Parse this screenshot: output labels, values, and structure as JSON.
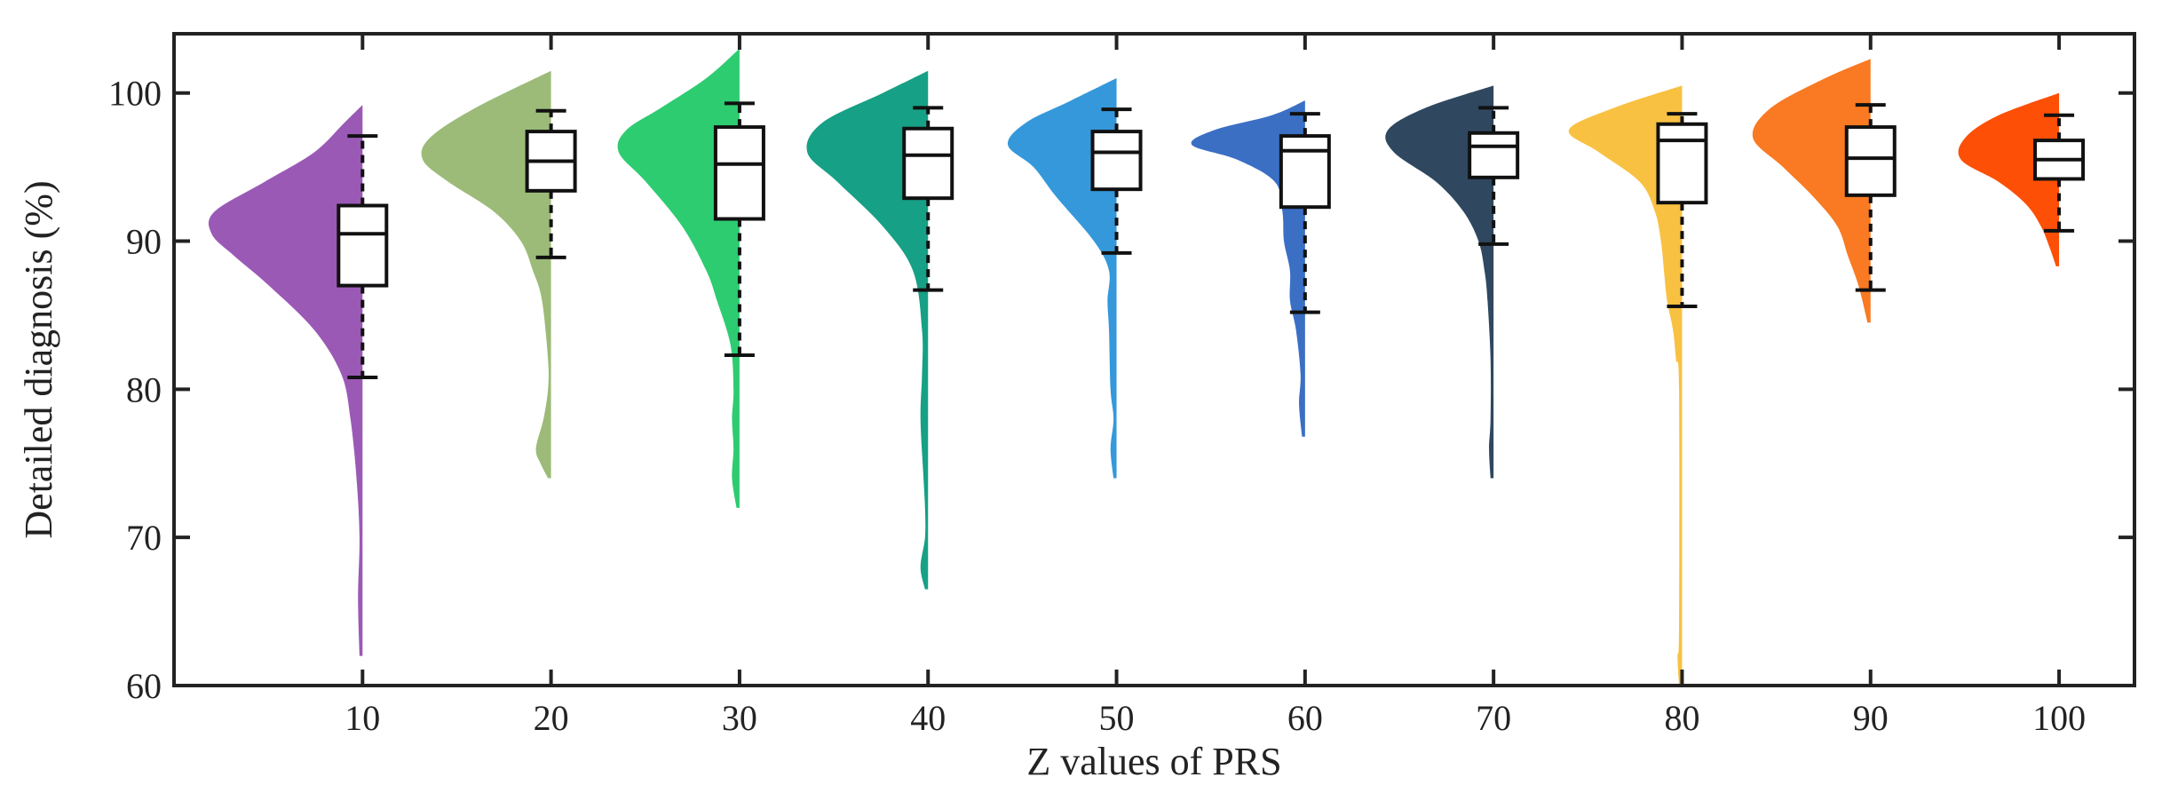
{
  "chart_data": {
    "type": "violin+box (half-violin)",
    "xlabel": "Z values of PRS",
    "ylabel": "Detailed diagnosis (%)",
    "ylim": [
      60,
      104
    ],
    "xlim": [
      0,
      104
    ],
    "yticks": [
      60,
      70,
      80,
      90,
      100
    ],
    "yticklabels": [
      "60",
      "70",
      "80",
      "90",
      "100"
    ],
    "xticks": [
      10,
      20,
      30,
      40,
      50,
      60,
      70,
      80,
      90,
      100
    ],
    "xticklabels": [
      "10",
      "20",
      "30",
      "40",
      "50",
      "60",
      "70",
      "80",
      "90",
      "100"
    ],
    "grid": false,
    "series": [
      {
        "x": 10,
        "color": "#9b59b6",
        "box": {
          "whisker_low": 80.8,
          "q1": 87.0,
          "median": 90.5,
          "q3": 92.4,
          "whisker_high": 97.1
        },
        "violin": [
          [
            62.0,
            0.02
          ],
          [
            66,
            0.03
          ],
          [
            70,
            0.02
          ],
          [
            74,
            0.04
          ],
          [
            78,
            0.08
          ],
          [
            81,
            0.14
          ],
          [
            84,
            0.32
          ],
          [
            87,
            0.62
          ],
          [
            89,
            0.85
          ],
          [
            90.5,
            1.0
          ],
          [
            92,
            0.98
          ],
          [
            94,
            0.65
          ],
          [
            96,
            0.32
          ],
          [
            98,
            0.12
          ],
          [
            99.2,
            0.0
          ]
        ]
      },
      {
        "x": 20,
        "color": "#9cbb78",
        "box": {
          "whisker_low": 88.9,
          "q1": 93.4,
          "median": 95.4,
          "q3": 97.4,
          "whisker_high": 98.8
        },
        "violin": [
          [
            74.0,
            0.02
          ],
          [
            75,
            0.07
          ],
          [
            76,
            0.1
          ],
          [
            78,
            0.05
          ],
          [
            80,
            0.02
          ],
          [
            82,
            0.02
          ],
          [
            86,
            0.06
          ],
          [
            88,
            0.12
          ],
          [
            90,
            0.2
          ],
          [
            92,
            0.38
          ],
          [
            94,
            0.68
          ],
          [
            95.5,
            0.85
          ],
          [
            97,
            0.8
          ],
          [
            99,
            0.5
          ],
          [
            101.5,
            0.0
          ]
        ]
      },
      {
        "x": 30,
        "color": "#2ecc71",
        "box": {
          "whisker_low": 82.3,
          "q1": 91.5,
          "median": 95.2,
          "q3": 97.7,
          "whisker_high": 99.3
        },
        "violin": [
          [
            72.0,
            0.02
          ],
          [
            74,
            0.05
          ],
          [
            76,
            0.04
          ],
          [
            78,
            0.05
          ],
          [
            80,
            0.04
          ],
          [
            83,
            0.06
          ],
          [
            86,
            0.15
          ],
          [
            88,
            0.22
          ],
          [
            91,
            0.38
          ],
          [
            94,
            0.62
          ],
          [
            96,
            0.8
          ],
          [
            97.5,
            0.75
          ],
          [
            99,
            0.52
          ],
          [
            101,
            0.22
          ],
          [
            103,
            0.0
          ]
        ]
      },
      {
        "x": 40,
        "color": "#16a085",
        "box": {
          "whisker_low": 86.7,
          "q1": 92.9,
          "median": 95.8,
          "q3": 97.6,
          "whisker_high": 99.0
        },
        "violin": [
          [
            66.5,
            0.02
          ],
          [
            68,
            0.05
          ],
          [
            70,
            0.02
          ],
          [
            72,
            0.02
          ],
          [
            74,
            0.03
          ],
          [
            78,
            0.05
          ],
          [
            81,
            0.04
          ],
          [
            84,
            0.04
          ],
          [
            88,
            0.1
          ],
          [
            91,
            0.3
          ],
          [
            94,
            0.6
          ],
          [
            96,
            0.8
          ],
          [
            98,
            0.7
          ],
          [
            100,
            0.3
          ],
          [
            101.5,
            0.0
          ]
        ]
      },
      {
        "x": 50,
        "color": "#3498db",
        "box": {
          "whisker_low": 89.2,
          "q1": 93.5,
          "median": 96.0,
          "q3": 97.4,
          "whisker_high": 98.9
        },
        "violin": [
          [
            74.0,
            0.02
          ],
          [
            76,
            0.04
          ],
          [
            78,
            0.02
          ],
          [
            80,
            0.04
          ],
          [
            84,
            0.05
          ],
          [
            86,
            0.06
          ],
          [
            88,
            0.05
          ],
          [
            90,
            0.15
          ],
          [
            93,
            0.4
          ],
          [
            95,
            0.55
          ],
          [
            96.5,
            0.72
          ],
          [
            98,
            0.6
          ],
          [
            99.5,
            0.3
          ],
          [
            101,
            0.0
          ]
        ]
      },
      {
        "x": 60,
        "color": "#3a6fc4",
        "box": {
          "whisker_low": 85.2,
          "q1": 92.3,
          "median": 96.1,
          "q3": 97.1,
          "whisker_high": 98.6
        },
        "violin": [
          [
            76.8,
            0.02
          ],
          [
            79,
            0.04
          ],
          [
            81,
            0.03
          ],
          [
            84,
            0.06
          ],
          [
            86,
            0.1
          ],
          [
            88,
            0.1
          ],
          [
            90,
            0.14
          ],
          [
            92,
            0.15
          ],
          [
            94,
            0.2
          ],
          [
            95.5,
            0.45
          ],
          [
            96.5,
            0.75
          ],
          [
            97.5,
            0.6
          ],
          [
            98.5,
            0.22
          ],
          [
            99.5,
            0.0
          ]
        ]
      },
      {
        "x": 70,
        "color": "#2f4860",
        "box": {
          "whisker_low": 89.8,
          "q1": 94.3,
          "median": 96.4,
          "q3": 97.3,
          "whisker_high": 99.0
        },
        "violin": [
          [
            74.0,
            0.02
          ],
          [
            76,
            0.03
          ],
          [
            78,
            0.02
          ],
          [
            82,
            0.02
          ],
          [
            86,
            0.04
          ],
          [
            88,
            0.06
          ],
          [
            90,
            0.1
          ],
          [
            92,
            0.2
          ],
          [
            94,
            0.38
          ],
          [
            96,
            0.66
          ],
          [
            97.5,
            0.7
          ],
          [
            99,
            0.45
          ],
          [
            100.5,
            0.0
          ]
        ]
      },
      {
        "x": 80,
        "color": "#f8c141",
        "box": {
          "whisker_low": 85.6,
          "q1": 92.6,
          "median": 96.8,
          "q3": 97.9,
          "whisker_high": 98.6
        },
        "violin": [
          [
            60.0,
            0.02
          ],
          [
            62,
            0.03
          ],
          [
            64,
            0.02
          ],
          [
            80,
            0.02
          ],
          [
            82,
            0.04
          ],
          [
            84,
            0.06
          ],
          [
            86,
            0.1
          ],
          [
            88,
            0.12
          ],
          [
            90,
            0.14
          ],
          [
            92,
            0.18
          ],
          [
            94,
            0.28
          ],
          [
            96,
            0.55
          ],
          [
            97.5,
            0.75
          ],
          [
            99,
            0.45
          ],
          [
            100.5,
            0.0
          ]
        ]
      },
      {
        "x": 90,
        "color": "#f97a22",
        "box": {
          "whisker_low": 86.7,
          "q1": 93.1,
          "median": 95.6,
          "q3": 97.7,
          "whisker_high": 99.2
        },
        "violin": [
          [
            84.5,
            0.02
          ],
          [
            87,
            0.08
          ],
          [
            89,
            0.15
          ],
          [
            91,
            0.22
          ],
          [
            93,
            0.38
          ],
          [
            95,
            0.58
          ],
          [
            97,
            0.78
          ],
          [
            99,
            0.66
          ],
          [
            101,
            0.3
          ],
          [
            102.3,
            0.0
          ]
        ]
      },
      {
        "x": 100,
        "color": "#fd4f05",
        "box": {
          "whisker_low": 90.7,
          "q1": 94.2,
          "median": 95.5,
          "q3": 96.8,
          "whisker_high": 98.5
        },
        "violin": [
          [
            88.3,
            0.02
          ],
          [
            89.5,
            0.06
          ],
          [
            91,
            0.12
          ],
          [
            92.5,
            0.22
          ],
          [
            94,
            0.4
          ],
          [
            95.5,
            0.65
          ],
          [
            97,
            0.62
          ],
          [
            98.5,
            0.4
          ],
          [
            100,
            0.0
          ]
        ]
      }
    ]
  }
}
